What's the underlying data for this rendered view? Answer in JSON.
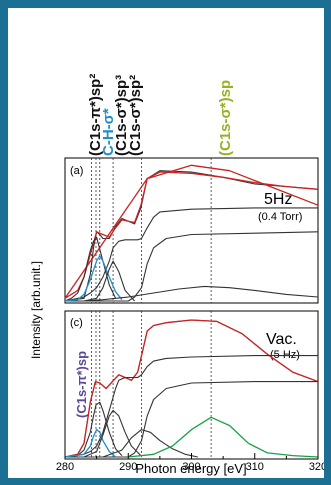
{
  "chart_data": [
    {
      "panel": "(a)",
      "type": "line",
      "condition": "5Hz",
      "subcondition": "(0.4 Torr)",
      "xlabel": "Photon energy [eV]",
      "ylabel": "Intensity [arb.unit.]",
      "xlim": [
        280,
        320
      ],
      "x_ticks": [
        280,
        285,
        290,
        295,
        300,
        305,
        310,
        315,
        320
      ],
      "x_tick_labels": [
        "280",
        "",
        "290",
        "",
        "300",
        "",
        "310",
        "",
        "320"
      ],
      "vlines": [
        284.2,
        284.9,
        285.5,
        287.6,
        292.1,
        303.1
      ],
      "series": [
        {
          "color": "#333333",
          "x": [
            280,
            283,
            284,
            284.5,
            285,
            285.5,
            286,
            287,
            288,
            289,
            290,
            291,
            292,
            293,
            295,
            300,
            305,
            310,
            315,
            320
          ],
          "values": [
            0.0,
            0.02,
            0.2,
            0.4,
            0.52,
            0.5,
            0.47,
            0.47,
            0.56,
            0.62,
            0.6,
            0.58,
            0.7,
            0.92,
            0.98,
            0.97,
            0.93,
            0.88,
            0.86,
            0.84
          ]
        },
        {
          "color": "#cc2222",
          "x": [
            280,
            282,
            283,
            284,
            285,
            286,
            287,
            288,
            289,
            290,
            291,
            292,
            293,
            295,
            300,
            305,
            310,
            315,
            320
          ],
          "values": [
            0.02,
            0.08,
            0.18,
            0.35,
            0.52,
            0.5,
            0.48,
            0.55,
            0.61,
            0.6,
            0.59,
            0.72,
            0.92,
            0.97,
            0.96,
            0.93,
            0.89,
            0.86,
            0.84
          ]
        },
        {
          "color": "#cc2222",
          "x": [
            280,
            293,
            300,
            306,
            320
          ],
          "values": [
            0.02,
            0.92,
            1.02,
            0.98,
            0.72
          ]
        },
        {
          "color": "#333333",
          "x": [
            280,
            283,
            284,
            285,
            286,
            287,
            287.6,
            288.5,
            289.5,
            290.5,
            291.5,
            292.1,
            293,
            294,
            295,
            300,
            310,
            320
          ],
          "values": [
            0,
            0.03,
            0.06,
            0.1,
            0.18,
            0.3,
            0.4,
            0.45,
            0.46,
            0.46,
            0.46,
            0.47,
            0.55,
            0.63,
            0.67,
            0.69,
            0.7,
            0.7
          ]
        },
        {
          "color": "#333333",
          "x": [
            280,
            290,
            291,
            292.1,
            293,
            294,
            296,
            300,
            310,
            320
          ],
          "values": [
            0,
            0,
            0.03,
            0.1,
            0.28,
            0.4,
            0.47,
            0.5,
            0.51,
            0.52
          ]
        },
        {
          "color": "#333333",
          "x": [
            280,
            281,
            282,
            283,
            283.5,
            284,
            284.5,
            285,
            286,
            287,
            288
          ],
          "values": [
            0,
            0.02,
            0.06,
            0.18,
            0.28,
            0.38,
            0.45,
            0.48,
            0.3,
            0.12,
            0.02
          ]
        },
        {
          "color": "#1f8fc8",
          "x": [
            280,
            282,
            283,
            284,
            285,
            285.5,
            286,
            287,
            288,
            289
          ],
          "values": [
            0,
            0.01,
            0.05,
            0.16,
            0.3,
            0.34,
            0.3,
            0.18,
            0.07,
            0.01
          ]
        },
        {
          "color": "#333333",
          "x": [
            283,
            285,
            286,
            287,
            287.6,
            288.5,
            289.5,
            291
          ],
          "values": [
            0,
            0.02,
            0.1,
            0.24,
            0.3,
            0.22,
            0.08,
            0.0
          ]
        },
        {
          "color": "#333333",
          "x": [
            283,
            286,
            290,
            294,
            298,
            302,
            306,
            310,
            315,
            320
          ],
          "values": [
            0,
            0.01,
            0.03,
            0.06,
            0.09,
            0.11,
            0.1,
            0.08,
            0.05,
            0.03
          ]
        }
      ]
    },
    {
      "panel": "(c)",
      "type": "line",
      "condition": "Vac.",
      "subcondition": "(5 Hz)",
      "xlabel": "Photon energy [eV]",
      "ylabel": "Intensity [arb.unit.]",
      "xlim": [
        280,
        320
      ],
      "x_ticks": [
        280,
        285,
        290,
        295,
        300,
        305,
        310,
        315,
        320
      ],
      "x_tick_labels": [
        "280",
        "",
        "290",
        "",
        "300",
        "",
        "310",
        "",
        "320"
      ],
      "vlines": [
        284.2,
        284.9,
        285.5,
        287.6,
        292.1,
        303.1
      ],
      "series": [
        {
          "color": "#333333",
          "x": [
            280,
            282,
            283,
            284,
            284.8,
            285.5,
            286.5,
            287.5,
            288.5,
            289.5,
            290.5,
            291.5,
            292.3,
            293,
            294,
            296,
            300,
            304,
            308,
            312,
            316,
            320
          ],
          "values": [
            0.0,
            0.02,
            0.1,
            0.4,
            0.55,
            0.54,
            0.5,
            0.55,
            0.6,
            0.58,
            0.56,
            0.62,
            0.78,
            0.92,
            0.96,
            0.98,
            1.0,
            0.99,
            0.9,
            0.75,
            0.62,
            0.55
          ]
        },
        {
          "color": "#cc2222",
          "x": [
            280,
            282,
            283,
            284,
            284.8,
            285.5,
            286.5,
            287.5,
            288.5,
            289.5,
            290.5,
            291.5,
            292.3,
            293,
            294,
            296,
            300,
            304,
            308,
            312,
            316,
            320
          ],
          "values": [
            0.0,
            0.02,
            0.1,
            0.4,
            0.55,
            0.54,
            0.5,
            0.55,
            0.6,
            0.58,
            0.56,
            0.62,
            0.78,
            0.92,
            0.96,
            0.98,
            1.0,
            0.99,
            0.9,
            0.75,
            0.62,
            0.55
          ]
        },
        {
          "color": "#333333",
          "x": [
            280,
            283,
            284,
            285,
            286,
            287,
            288,
            288.5,
            289.5,
            290.5,
            291.5,
            292.1,
            293,
            294,
            296,
            300,
            310,
            320
          ],
          "values": [
            0,
            0.02,
            0.04,
            0.08,
            0.18,
            0.34,
            0.5,
            0.56,
            0.58,
            0.58,
            0.58,
            0.6,
            0.66,
            0.7,
            0.72,
            0.73,
            0.74,
            0.74
          ]
        },
        {
          "color": "#333333",
          "x": [
            280,
            290,
            291,
            292.1,
            293,
            294,
            296,
            300,
            310,
            320
          ],
          "values": [
            0,
            0,
            0.03,
            0.12,
            0.3,
            0.42,
            0.5,
            0.54,
            0.55,
            0.55
          ]
        },
        {
          "color": "#333333",
          "x": [
            280,
            282,
            283,
            284,
            284.5,
            284.9,
            285.5,
            286,
            287,
            288,
            289
          ],
          "values": [
            0,
            0.01,
            0.05,
            0.18,
            0.3,
            0.38,
            0.4,
            0.34,
            0.18,
            0.06,
            0.01
          ]
        },
        {
          "color": "#1f8fc8",
          "x": [
            280,
            283,
            284,
            284.5,
            285,
            285.5,
            286,
            287,
            288
          ],
          "values": [
            0,
            0.02,
            0.08,
            0.15,
            0.2,
            0.18,
            0.12,
            0.04,
            0
          ]
        },
        {
          "color": "#333333",
          "x": [
            283,
            285,
            286,
            287,
            287.6,
            288.5,
            289.5,
            290.5,
            292
          ],
          "values": [
            0,
            0.04,
            0.16,
            0.3,
            0.34,
            0.3,
            0.18,
            0.08,
            0.01
          ]
        },
        {
          "color": "#333333",
          "x": [
            286,
            289,
            290.5,
            292.1,
            293.5,
            295,
            297,
            299,
            301
          ],
          "values": [
            0,
            0.05,
            0.14,
            0.2,
            0.18,
            0.12,
            0.06,
            0.02,
            0
          ]
        },
        {
          "color": "#1aa046",
          "x": [
            290,
            294,
            297,
            300,
            303.1,
            306,
            309,
            312,
            316,
            320
          ],
          "values": [
            0,
            0.02,
            0.08,
            0.2,
            0.29,
            0.23,
            0.1,
            0.03,
            0.01,
            0
          ]
        }
      ]
    }
  ],
  "peak_labels": [
    {
      "text": "(C1s-π*)sp²",
      "color": "#111111"
    },
    {
      "text": "C-H-σ*",
      "color": "#1f8fc8"
    },
    {
      "text": "(C1s-σ*)sp³",
      "color": "#111111"
    },
    {
      "text": "(C1s-σ*)sp²",
      "color": "#111111"
    },
    {
      "text": "(C1s-σ*)sp",
      "color": "#9aaf24"
    },
    {
      "text": "(C1s-π*)sp",
      "color": "#5b4a9a"
    }
  ]
}
